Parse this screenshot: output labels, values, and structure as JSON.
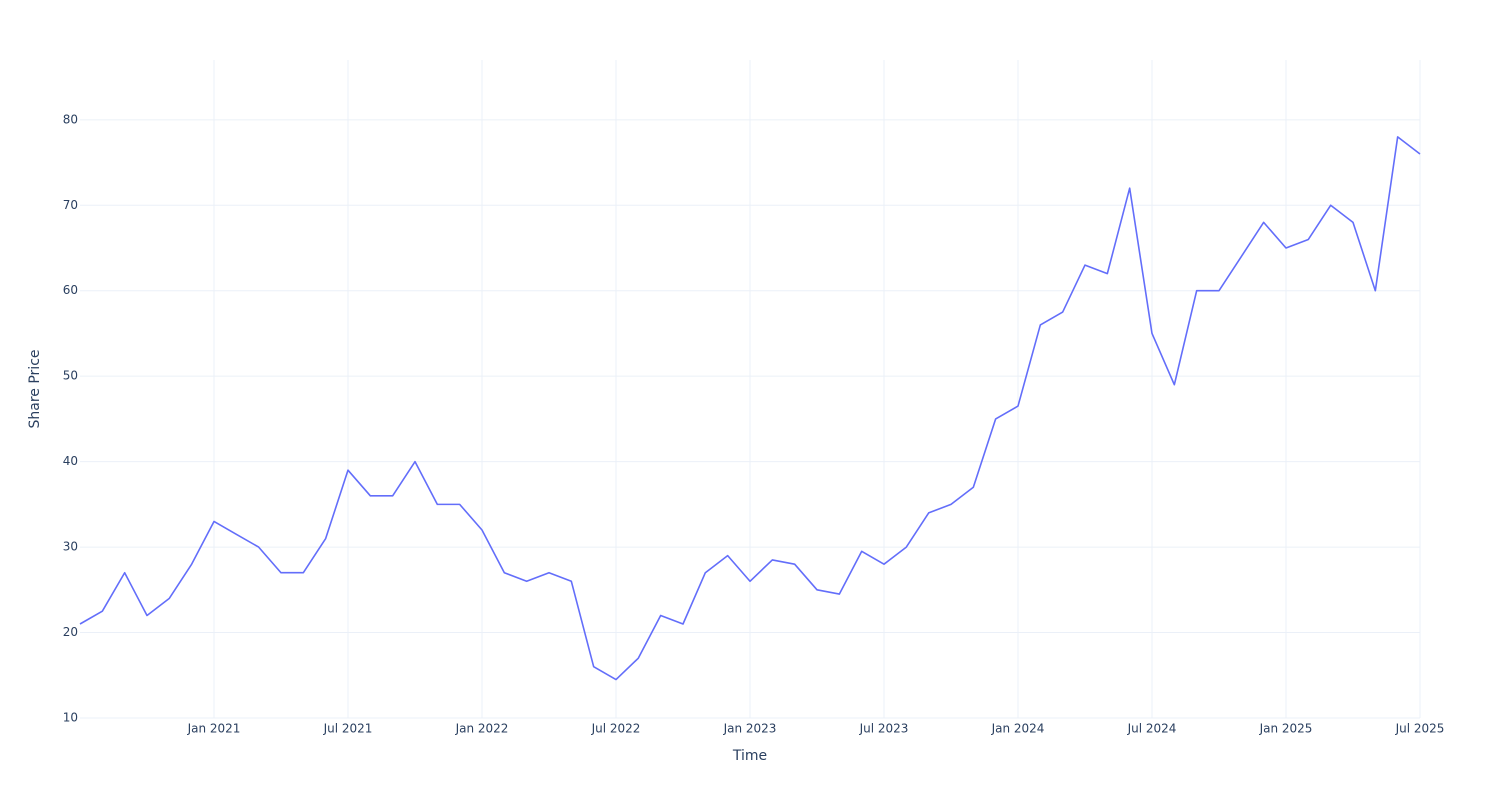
{
  "chart_data": {
    "type": "line",
    "xlabel": "Time",
    "ylabel": "Share Price",
    "x": [
      "2020-07",
      "2020-08",
      "2020-09",
      "2020-10",
      "2020-11",
      "2020-12",
      "2021-01",
      "2021-02",
      "2021-03",
      "2021-04",
      "2021-05",
      "2021-06",
      "2021-07",
      "2021-08",
      "2021-09",
      "2021-10",
      "2021-11",
      "2021-12",
      "2022-01",
      "2022-02",
      "2022-03",
      "2022-04",
      "2022-05",
      "2022-06",
      "2022-07",
      "2022-08",
      "2022-09",
      "2022-10",
      "2022-11",
      "2022-12",
      "2023-01",
      "2023-02",
      "2023-03",
      "2023-04",
      "2023-05",
      "2023-06",
      "2023-07",
      "2023-08",
      "2023-09",
      "2023-10",
      "2023-11",
      "2023-12",
      "2024-01",
      "2024-02",
      "2024-03",
      "2024-04",
      "2024-05",
      "2024-06",
      "2024-07",
      "2024-08",
      "2024-09",
      "2024-10",
      "2024-11",
      "2024-12",
      "2025-01",
      "2025-02",
      "2025-03",
      "2025-04",
      "2025-05",
      "2025-06",
      "2025-07"
    ],
    "series": [
      {
        "name": "Share Price",
        "color": "#636efa",
        "values": [
          21,
          22.5,
          27,
          22,
          24,
          28,
          33,
          31.5,
          30,
          27,
          27,
          31,
          39,
          36,
          36,
          40,
          35,
          35,
          32,
          27,
          26,
          27,
          26,
          16,
          14.5,
          17,
          22,
          21,
          27,
          29,
          26,
          28.5,
          28,
          25,
          24.5,
          29.5,
          28,
          30,
          34,
          35,
          37,
          45,
          46.5,
          56,
          57.5,
          63,
          62,
          72,
          55,
          49,
          60,
          60,
          64,
          68,
          65,
          66,
          70,
          68,
          60,
          78,
          76
        ]
      }
    ],
    "xlim": [
      "2020-07",
      "2025-07"
    ],
    "xticks": [
      {
        "value": "2021-01",
        "label": "Jan 2021"
      },
      {
        "value": "2021-07",
        "label": "Jul 2021"
      },
      {
        "value": "2022-01",
        "label": "Jan 2022"
      },
      {
        "value": "2022-07",
        "label": "Jul 2022"
      },
      {
        "value": "2023-01",
        "label": "Jan 2023"
      },
      {
        "value": "2023-07",
        "label": "Jul 2023"
      },
      {
        "value": "2024-01",
        "label": "Jan 2024"
      },
      {
        "value": "2024-07",
        "label": "Jul 2024"
      },
      {
        "value": "2025-01",
        "label": "Jan 2025"
      },
      {
        "value": "2025-07",
        "label": "Jul 2025"
      }
    ],
    "ylim": [
      10,
      87
    ],
    "yticks": [
      10,
      20,
      30,
      40,
      50,
      60,
      70,
      80
    ],
    "grid": true
  }
}
